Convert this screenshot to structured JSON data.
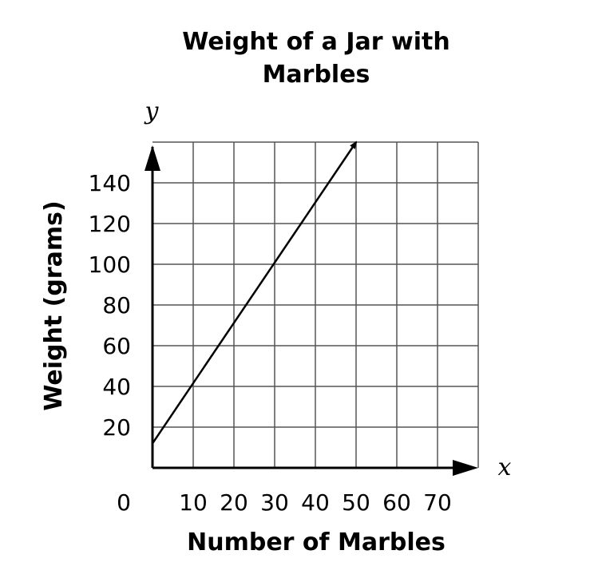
{
  "chart_data": {
    "type": "line",
    "title": [
      "Weight of a Jar with",
      "Marbles"
    ],
    "xlabel": "Number of Marbles",
    "ylabel": "Weight (grams)",
    "x_var": "x",
    "y_var": "y",
    "origin_label": "0",
    "xlim": [
      0,
      80
    ],
    "ylim": [
      0,
      160
    ],
    "x_grid_step": 10,
    "y_grid_step": 20,
    "xticks": [
      10,
      20,
      30,
      40,
      50,
      60,
      70
    ],
    "yticks": [
      20,
      40,
      60,
      80,
      100,
      120,
      140
    ],
    "grid": true,
    "series": [
      {
        "x": [
          0,
          50
        ],
        "y": [
          12,
          160
        ],
        "arrow_end": true,
        "color": "#000000"
      }
    ]
  }
}
